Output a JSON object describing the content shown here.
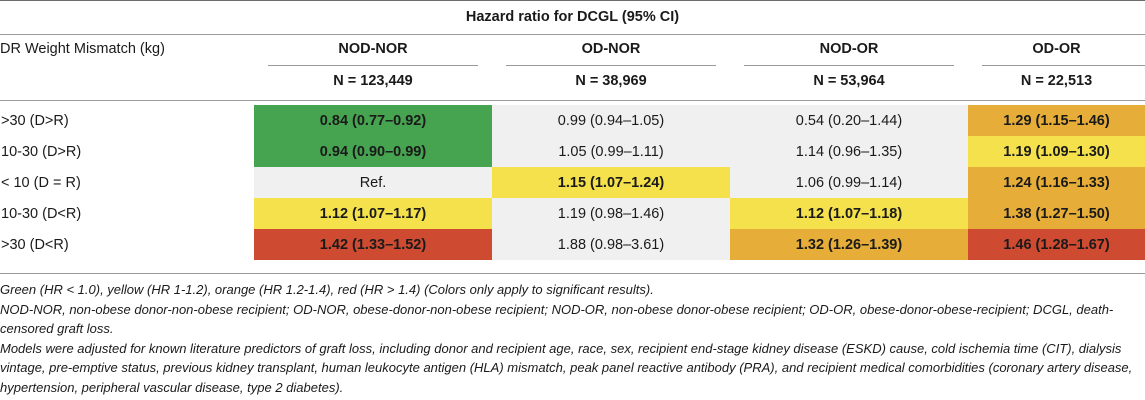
{
  "table": {
    "title": "Hazard ratio for DCGL (95% CI)",
    "row_header": "DR Weight Mismatch (kg)",
    "groups": [
      {
        "name": "NOD-NOR",
        "n": "N = 123,449"
      },
      {
        "name": "OD-NOR",
        "n": "N = 38,969"
      },
      {
        "name": "NOD-OR",
        "n": "N = 53,964"
      },
      {
        "name": "OD-OR",
        "n": "N = 22,513"
      }
    ],
    "colors": {
      "green": "#46a350",
      "yellow": "#f4e14b",
      "orange": "#e7ad39",
      "red": "#ce4a31",
      "gray": "#f0f0f0"
    },
    "rows": [
      {
        "label": ">30 (D>R)",
        "cells": [
          {
            "text": "0.84 (0.77–0.92)",
            "bold": true,
            "color": "green"
          },
          {
            "text": "0.99 (0.94–1.05)",
            "bold": false,
            "color": "gray"
          },
          {
            "text": "0.54 (0.20–1.44)",
            "bold": false,
            "color": "gray"
          },
          {
            "text": "1.29 (1.15–1.46)",
            "bold": true,
            "color": "orange"
          }
        ]
      },
      {
        "label": "10-30 (D>R)",
        "cells": [
          {
            "text": "0.94 (0.90–0.99)",
            "bold": true,
            "color": "green"
          },
          {
            "text": "1.05 (0.99–1.11)",
            "bold": false,
            "color": "gray"
          },
          {
            "text": "1.14 (0.96–1.35)",
            "bold": false,
            "color": "gray"
          },
          {
            "text": "1.19 (1.09–1.30)",
            "bold": true,
            "color": "yellow"
          }
        ]
      },
      {
        "label": "< 10 (D = R)",
        "cells": [
          {
            "text": "Ref.",
            "bold": false,
            "color": "gray"
          },
          {
            "text": "1.15 (1.07–1.24)",
            "bold": true,
            "color": "yellow"
          },
          {
            "text": "1.06 (0.99–1.14)",
            "bold": false,
            "color": "gray"
          },
          {
            "text": "1.24 (1.16–1.33)",
            "bold": true,
            "color": "orange"
          }
        ]
      },
      {
        "label": "10-30 (D<R)",
        "cells": [
          {
            "text": "1.12 (1.07–1.17)",
            "bold": true,
            "color": "yellow"
          },
          {
            "text": "1.19 (0.98–1.46)",
            "bold": false,
            "color": "gray"
          },
          {
            "text": "1.12 (1.07–1.18)",
            "bold": true,
            "color": "yellow"
          },
          {
            "text": "1.38 (1.27–1.50)",
            "bold": true,
            "color": "orange"
          }
        ]
      },
      {
        "label": ">30 (D<R)",
        "cells": [
          {
            "text": "1.42 (1.33–1.52)",
            "bold": true,
            "color": "red"
          },
          {
            "text": "1.88 (0.98–3.61)",
            "bold": false,
            "color": "gray"
          },
          {
            "text": "1.32 (1.26–1.39)",
            "bold": true,
            "color": "orange"
          },
          {
            "text": "1.46 (1.28–1.67)",
            "bold": true,
            "color": "red"
          }
        ]
      }
    ]
  },
  "notes": [
    "Green (HR < 1.0), yellow (HR 1-1.2), orange (HR 1.2-1.4), red (HR > 1.4) (Colors only apply to significant results).",
    "NOD-NOR, non-obese donor-non-obese recipient; OD-NOR, obese-donor-non-obese recipient; NOD-OR, non-obese donor-obese recipient; OD-OR, obese-donor-obese-recipient; DCGL, death-censored graft loss.",
    "Models were adjusted for known literature predictors of graft loss, including donor and recipient age, race, sex, recipient end-stage kidney disease (ESKD) cause, cold ischemia time (CIT), dialysis vintage, pre-emptive status, previous kidney transplant, human leukocyte antigen (HLA) mismatch, peak panel reactive antibody (PRA), and recipient medical comorbidities (coronary artery disease, hypertension, peripheral vascular disease, type 2 diabetes)."
  ]
}
